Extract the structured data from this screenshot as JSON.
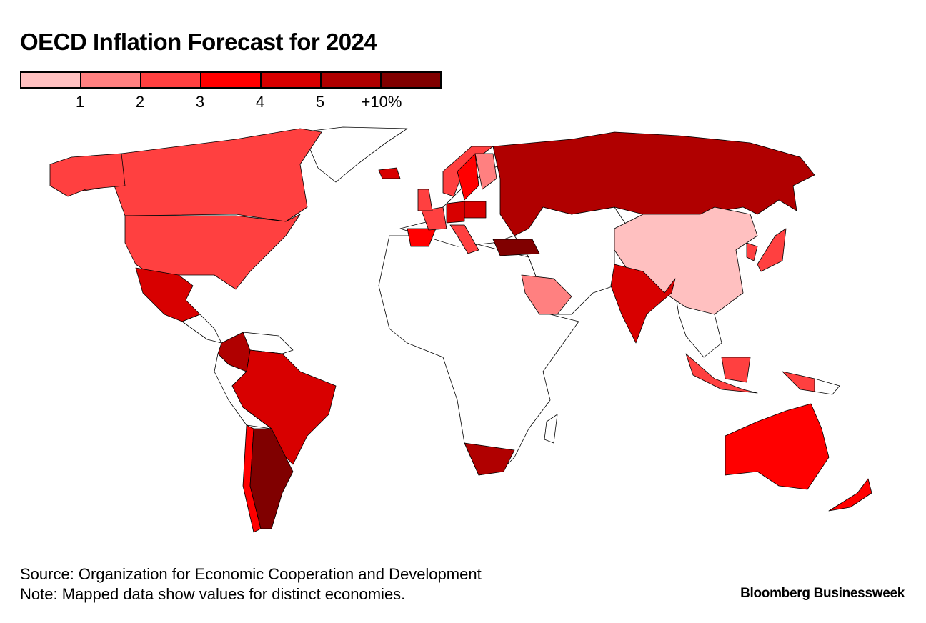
{
  "title": "OECD Inflation Forecast for 2024",
  "legend": {
    "colors": [
      "#ffc0c0",
      "#ff8080",
      "#ff4040",
      "#ff0000",
      "#d80000",
      "#b00000",
      "#800000"
    ],
    "ticks": [
      "1",
      "2",
      "3",
      "4",
      "5",
      "+10%"
    ]
  },
  "chart_data": {
    "type": "choropleth",
    "title": "OECD Inflation Forecast for 2024",
    "unit": "%",
    "bin_edges": [
      1,
      2,
      3,
      4,
      5,
      10
    ],
    "no_data_color": "#ffffff",
    "regions": [
      {
        "id": "CAN",
        "bin": 2
      },
      {
        "id": "USA",
        "bin": 2
      },
      {
        "id": "MEX",
        "bin": 4
      },
      {
        "id": "COL",
        "bin": 5
      },
      {
        "id": "BRA",
        "bin": 4
      },
      {
        "id": "CHL",
        "bin": 3
      },
      {
        "id": "ARG",
        "bin": 6
      },
      {
        "id": "ZAF",
        "bin": 5
      },
      {
        "id": "ESP",
        "bin": 3
      },
      {
        "id": "FRA",
        "bin": 2
      },
      {
        "id": "DEU",
        "bin": 4
      },
      {
        "id": "POL",
        "bin": 4
      },
      {
        "id": "ITA",
        "bin": 2
      },
      {
        "id": "GBR",
        "bin": 2
      },
      {
        "id": "NOR",
        "bin": 2
      },
      {
        "id": "SWE",
        "bin": 3
      },
      {
        "id": "FIN",
        "bin": 1
      },
      {
        "id": "ISL",
        "bin": 4
      },
      {
        "id": "TUR",
        "bin": 6
      },
      {
        "id": "RUS",
        "bin": 5
      },
      {
        "id": "SAU",
        "bin": 1
      },
      {
        "id": "CHN",
        "bin": 0
      },
      {
        "id": "IND",
        "bin": 4
      },
      {
        "id": "JPN",
        "bin": 2
      },
      {
        "id": "KOR",
        "bin": 2
      },
      {
        "id": "IDN",
        "bin": 2
      },
      {
        "id": "AUS",
        "bin": 3
      },
      {
        "id": "NZL",
        "bin": 3
      }
    ]
  },
  "footer": {
    "source": "Source: Organization for Economic Cooperation and Development",
    "note": "Note: Mapped data show values for distinct economies.",
    "brand": "Bloomberg Businessweek"
  }
}
